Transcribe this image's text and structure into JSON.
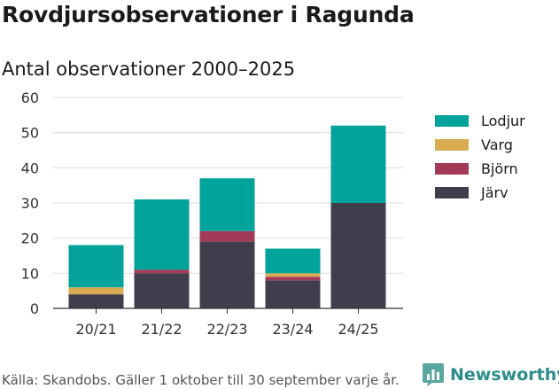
{
  "title": "Rovdjursobservationer i Ragunda",
  "subtitle": "Antal observationer 2000–2025",
  "footer": "Källa: Skandobs. Gäller 1 oktober till 30 september varje år.",
  "brand": {
    "name": "Newsworthy",
    "logo": "bar-chart-logo-icon"
  },
  "chart_data": {
    "type": "bar",
    "stacked": true,
    "categories": [
      "20/21",
      "21/22",
      "22/23",
      "23/24",
      "24/25"
    ],
    "series": [
      {
        "name": "Järv",
        "color": "#403e4d",
        "values": [
          4,
          10,
          19,
          8,
          30
        ]
      },
      {
        "name": "Björn",
        "color": "#a33b58",
        "values": [
          0,
          1,
          3,
          1,
          0
        ]
      },
      {
        "name": "Varg",
        "color": "#d9ac52",
        "values": [
          2,
          0,
          0,
          1,
          0
        ]
      },
      {
        "name": "Lodjur",
        "color": "#02a39b",
        "values": [
          12,
          20,
          15,
          7,
          22
        ]
      }
    ],
    "legend_order": [
      "Lodjur",
      "Varg",
      "Björn",
      "Järv"
    ],
    "legend_position": "right",
    "ylim": [
      0,
      60
    ],
    "yticks": [
      0,
      10,
      20,
      30,
      40,
      50,
      60
    ],
    "grid": true
  }
}
